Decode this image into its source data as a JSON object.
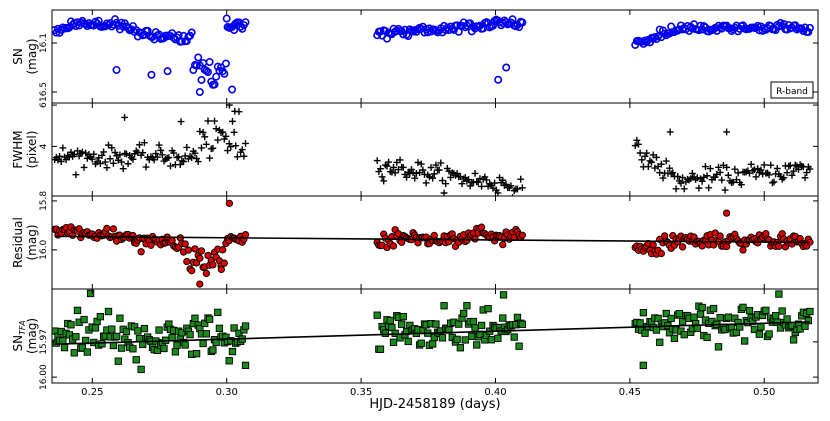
{
  "chart_data": {
    "type": "scatter",
    "xlabel": "HJD-2458189 (days)",
    "xlim": [
      0.235,
      0.52
    ],
    "xticks": [
      0.25,
      0.3,
      0.35,
      0.4,
      0.45,
      0.5
    ],
    "xtick_labels": [
      "0.25",
      "0.30",
      "0.35",
      "0.40",
      "0.45",
      "0.50"
    ],
    "segments": [
      [
        0.236,
        0.307
      ],
      [
        0.356,
        0.41
      ],
      [
        0.452,
        0.517
      ]
    ],
    "legend": {
      "text": "R-band",
      "location": "right"
    },
    "panels": [
      {
        "id": "sn",
        "ylabel": [
          "SN",
          "(mag)"
        ],
        "ylim": [
          16.59,
          15.83
        ],
        "yticks": [
          16.1,
          16.5
        ],
        "ytick_labels": [
          "16.1",
          "16.5"
        ],
        "marker": "circle-open",
        "color": "#0000ee",
        "trend": null
      },
      {
        "id": "fwhm",
        "ylabel": [
          "FWHM",
          "(pixel)"
        ],
        "ylim": [
          1.6,
          6.1
        ],
        "yticks": [
          4,
          6
        ],
        "ytick_labels": [
          "4",
          "6"
        ],
        "marker": "plus",
        "color": "#000000",
        "trend": null
      },
      {
        "id": "residual",
        "ylabel": [
          "Residual",
          "(mag)"
        ],
        "ylim": [
          16.16,
          15.78
        ],
        "yticks": [
          15.8,
          16.0
        ],
        "ytick_labels": [
          "15.8",
          "16.0"
        ],
        "marker": "circle-filled",
        "color": "#dd0000",
        "trend": [
          [
            0.236,
            15.945
          ],
          [
            0.517,
            15.97
          ]
        ]
      },
      {
        "id": "sntfa",
        "ylabel": [
          "SN",
          "TFA",
          "(mag)"
        ],
        "ylim": [
          16.005,
          15.925
        ],
        "yticks": [
          15.97,
          16.0
        ],
        "ytick_labels": [
          "15.97",
          "16.00"
        ],
        "marker": "square-filled",
        "color": "#1a8a1a",
        "trend": [
          [
            0.236,
            15.972
          ],
          [
            0.517,
            15.953
          ]
        ]
      }
    ]
  }
}
